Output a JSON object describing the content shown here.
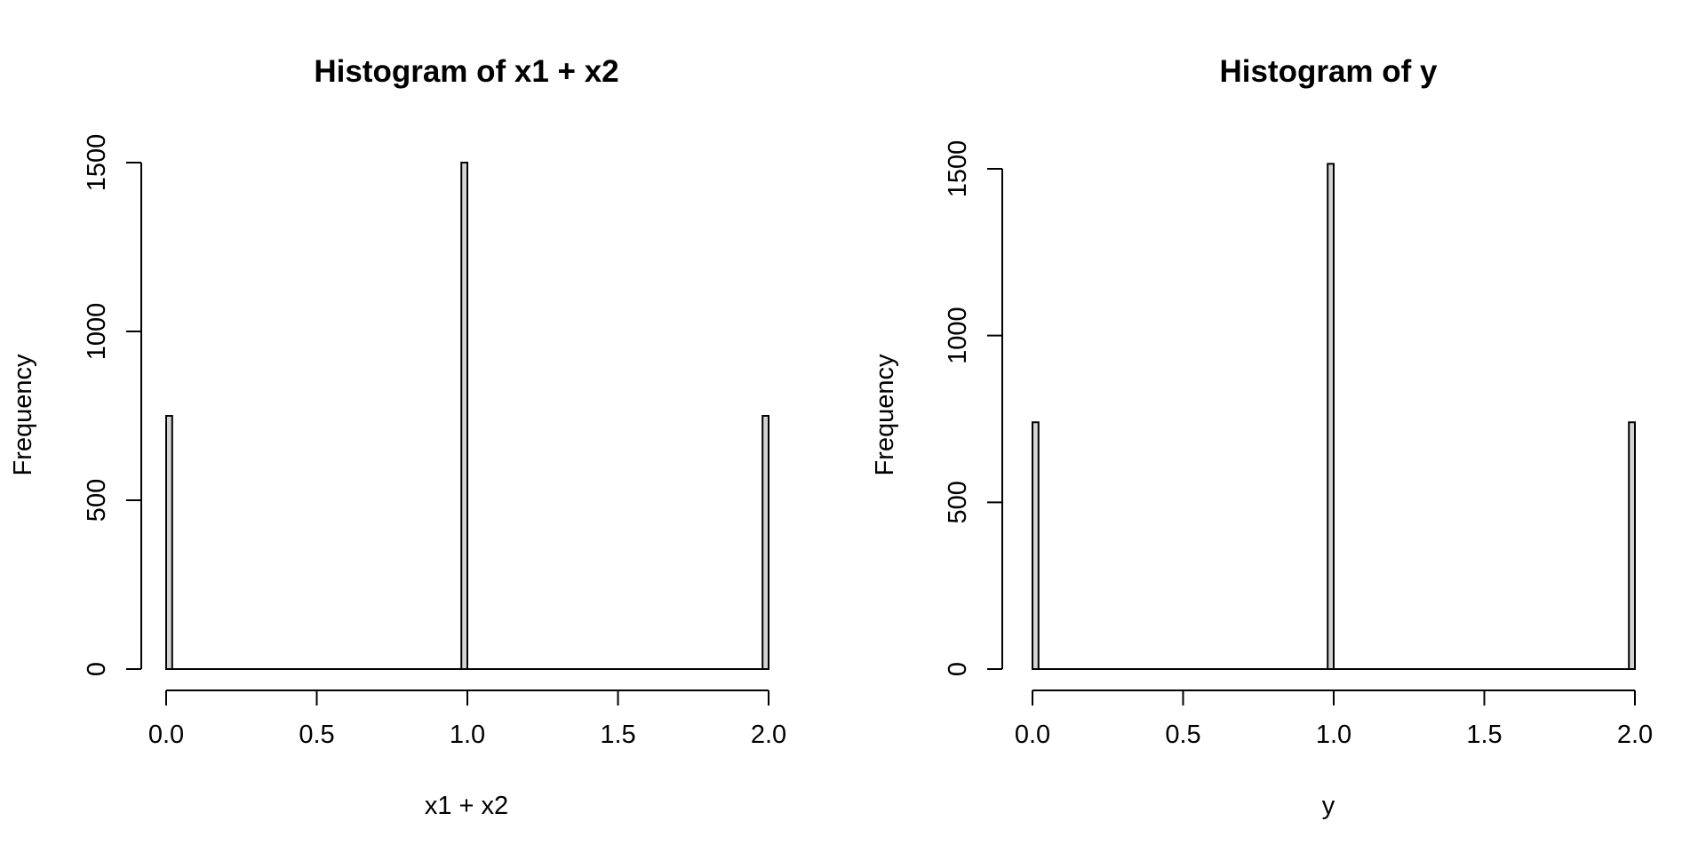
{
  "chart_data": [
    {
      "type": "bar",
      "subtype": "histogram",
      "title": "Histogram of x1 + x2",
      "xlabel": "x1 + x2",
      "ylabel": "Frequency",
      "bin_width": 0.02,
      "x_ticks": [
        "0.0",
        "0.5",
        "1.0",
        "1.5",
        "2.0"
      ],
      "y_ticks": [
        "0",
        "500",
        "1000",
        "1500"
      ],
      "xlim": [
        0,
        2
      ],
      "ylim": [
        0,
        1500
      ],
      "bins": [
        {
          "x": 0.0,
          "value": 750
        },
        {
          "x": 0.98,
          "value": 1500
        },
        {
          "x": 1.98,
          "value": 750
        }
      ],
      "grid": false,
      "bar_color": "#d3d3d3"
    },
    {
      "type": "bar",
      "subtype": "histogram",
      "title": "Histogram of y",
      "xlabel": "y",
      "ylabel": "Frequency",
      "bin_width": 0.02,
      "x_ticks": [
        "0.0",
        "0.5",
        "1.0",
        "1.5",
        "2.0"
      ],
      "y_ticks": [
        "0",
        "500",
        "1000",
        "1500"
      ],
      "xlim": [
        0,
        2
      ],
      "ylim": [
        0,
        1500
      ],
      "bins": [
        {
          "x": 0.0,
          "value": 740
        },
        {
          "x": 0.98,
          "value": 1515
        },
        {
          "x": 1.98,
          "value": 740
        }
      ],
      "grid": false,
      "bar_color": "#d3d3d3"
    }
  ]
}
